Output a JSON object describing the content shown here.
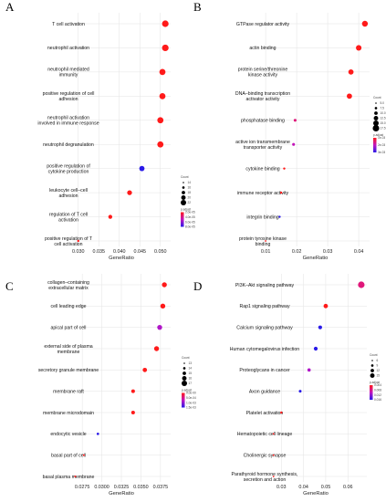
{
  "chart_data": [
    {
      "type": "scatter",
      "panel_label": "A",
      "xlabel": "GeneRatio",
      "xlim": [
        0.0285,
        0.0525
      ],
      "xticks": [
        0.03,
        0.035,
        0.04,
        0.045,
        0.05
      ],
      "xtick_labels": [
        "0.030",
        "0.035",
        "0.040",
        "0.045",
        "0.050"
      ],
      "categories": [
        "T cell activation",
        "neutrophil activation",
        "neutrophil mediated immunity",
        "positive regulation of cell adhesion",
        "neutrophil activation involved in immune response",
        "neutrophil degranulation",
        "positive regulation of cytokine production",
        "leukocyte cell–cell adhesion",
        "regulation of T cell activation",
        "positive regulation of T cell activation"
      ],
      "gene_ratio": [
        0.0512,
        0.0512,
        0.0505,
        0.0505,
        0.05,
        0.05,
        0.0455,
        0.0425,
        0.0378,
        0.03
      ],
      "count": [
        23,
        23,
        22,
        22,
        22,
        22,
        20,
        19,
        17,
        13
      ],
      "color": [
        "#ff1a1a",
        "#ff1a1a",
        "#ff1a1a",
        "#ff1a1a",
        "#ff1a1a",
        "#ff1a1a",
        "#2a1ae8",
        "#ff1a1a",
        "#ff1a1a",
        "#ff1a1a"
      ],
      "legend_size_title": "Count",
      "legend_size_values": [
        "14",
        "16",
        "18",
        "20",
        "22"
      ],
      "legend_color_title": "p.adjust",
      "legend_color_values": [
        "2.0e-05",
        "4.0e-05",
        "6.0e-05",
        "8.0e-05"
      ]
    },
    {
      "type": "scatter",
      "panel_label": "B",
      "xlabel": "GeneRatio",
      "xlim": [
        0.0085,
        0.0435
      ],
      "xticks": [
        0.01,
        0.02,
        0.03,
        0.04
      ],
      "xtick_labels": [
        "0.01",
        "0.02",
        "0.03",
        "0.04"
      ],
      "categories": [
        "GTPase regulator activity",
        "actin binding",
        "protein serine/threonine kinase activity",
        "DNA–binding transcription activator activity",
        "phosphatase binding",
        "active ion transmembrane transporter activity",
        "cytokine binding",
        "immune receptor activity",
        "integrin binding",
        "protein tyrosine kinase binding"
      ],
      "gene_ratio": [
        0.042,
        0.04,
        0.0375,
        0.037,
        0.0195,
        0.019,
        0.016,
        0.015,
        0.0145,
        0.01
      ],
      "count": [
        19,
        18,
        17,
        17,
        9,
        9,
        7,
        7,
        7,
        5
      ],
      "color": [
        "#ff1a1a",
        "#ff1a1a",
        "#ff1a1a",
        "#ff1a1a",
        "#e0177a",
        "#c216b8",
        "#ff1a1a",
        "#ff1a1a",
        "#2a1ae8",
        "#ff1a1a"
      ],
      "legend_size_title": "Count",
      "legend_size_values": [
        "5.0",
        "7.5",
        "10.0",
        "12.5",
        "15.0",
        "17.5"
      ],
      "legend_color_title": "p.adjust",
      "legend_color_values": [
        "1e-03",
        "2e-03",
        "3e-03"
      ]
    },
    {
      "type": "scatter",
      "panel_label": "C",
      "xlabel": "GeneRatio",
      "xlim": [
        0.0262,
        0.0388
      ],
      "xticks": [
        0.0275,
        0.03,
        0.0325,
        0.035,
        0.0375
      ],
      "xtick_labels": [
        "0.0275",
        "0.0300",
        "0.0325",
        "0.0350",
        "0.0375"
      ],
      "categories": [
        "collagen–containing extracellular matrix",
        "cell leading edge",
        "apical part of cell",
        "external side of plasma membrane",
        "secretory granule membrane",
        "membrane raft",
        "membrane microdomain",
        "endocytic vesicle",
        "basal part of cell",
        "basal plasma membrane"
      ],
      "gene_ratio": [
        0.038,
        0.0378,
        0.0374,
        0.037,
        0.0355,
        0.034,
        0.034,
        0.0295,
        0.0277,
        0.0266
      ],
      "count": [
        17,
        17,
        17,
        17,
        16,
        15,
        15,
        13,
        12,
        12
      ],
      "color": [
        "#ff1a1a",
        "#ff1a1a",
        "#b016c8",
        "#ff1a1a",
        "#ff1a1a",
        "#ff1a1a",
        "#ff1a1a",
        "#2a1ae8",
        "#ff1a1a",
        "#ff1a1a"
      ],
      "legend_size_title": "Count",
      "legend_size_values": [
        "13",
        "14",
        "15",
        "16",
        "17"
      ],
      "legend_color_title": "p.adjust",
      "legend_color_values": [
        "0.0e-00",
        "5.0e-04",
        "1.0e-03",
        "1.5e-03"
      ]
    },
    {
      "type": "scatter",
      "panel_label": "D",
      "xlabel": "GeneRatio",
      "xlim": [
        0.0225,
        0.0685
      ],
      "xticks": [
        0.03,
        0.04,
        0.05,
        0.06
      ],
      "xtick_labels": [
        "0.03",
        "0.04",
        "0.05",
        "0.06"
      ],
      "categories": [
        "PI3K–Akt signaling pathway",
        "Rap1 signaling pathway",
        "Calcium signaling pathway",
        "Human cytomegalovirus infection",
        "Proteoglycans in cancer",
        "Axon guidance",
        "Platelet activation",
        "Hematopoietic cell lineage",
        "Cholinergic synapse",
        "Parathyroid hormone synthesis, secretion and action"
      ],
      "gene_ratio": [
        0.066,
        0.05,
        0.0475,
        0.0455,
        0.0425,
        0.0385,
        0.03,
        0.0265,
        0.0265,
        0.0265
      ],
      "count": [
        15,
        11,
        10,
        10,
        9,
        8,
        7,
        6,
        6,
        6
      ],
      "color": [
        "#e0177a",
        "#ff1a1a",
        "#2a1ae8",
        "#2a1ae8",
        "#b016c8",
        "#2a1ae8",
        "#ff1a1a",
        "#ff1a1a",
        "#ff1a1a",
        "#ff1a1a"
      ],
      "legend_size_title": "Count",
      "legend_size_values": [
        "6",
        "9",
        "12",
        "15"
      ],
      "legend_color_title": "p.adjust",
      "legend_color_values": [
        "0.004",
        "0.008",
        "0.012",
        "0.016"
      ]
    }
  ]
}
